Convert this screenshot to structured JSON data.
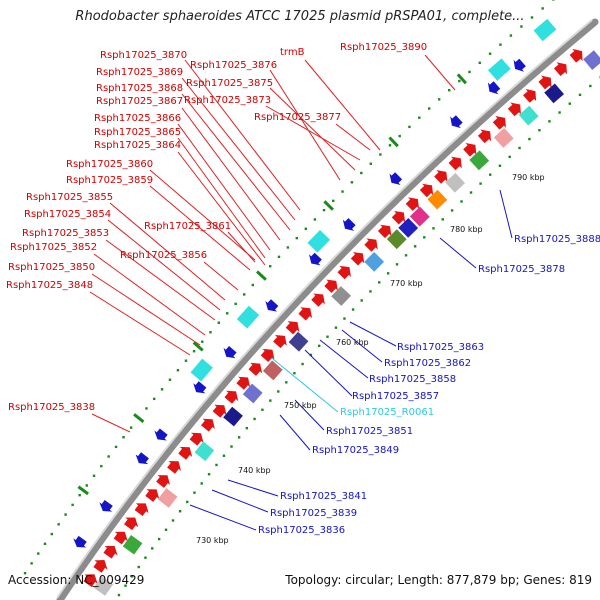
{
  "title": "Rhodobacter sphaeroides ATCC 17025 plasmid pRSPA01, complete...",
  "accession": "Accession: NC_009429",
  "topology": "Topology: circular; Length: 877,879 bp; Genes: 819",
  "colors": {
    "forward_label": "#d00000",
    "reverse_label": "#1414c8",
    "rna_label": "#30c8e0",
    "backbone": "#8c8c8c",
    "gc_skew": "#1a8a1a"
  },
  "ticks": [
    "730 kbp",
    "740 kbp",
    "750 kbp",
    "760 kbp",
    "770 kbp",
    "780 kbp",
    "790 kbp"
  ],
  "forward_labels": [
    "Rsph17025_3870",
    "Rsph17025_3876",
    "trmB",
    "Rsph17025_3890",
    "Rsph17025_3869",
    "Rsph17025_3875",
    "Rsph17025_3868",
    "Rsph17025_3873",
    "Rsph17025_3867",
    "Rsph17025_3877",
    "Rsph17025_3866",
    "Rsph17025_3865",
    "Rsph17025_3864",
    "Rsph17025_3860",
    "Rsph17025_3859",
    "Rsph17025_3855",
    "Rsph17025_3854",
    "Rsph17025_3861",
    "Rsph17025_3853",
    "Rsph17025_3852",
    "Rsph17025_3856",
    "Rsph17025_3850",
    "Rsph17025_3848",
    "Rsph17025_3838"
  ],
  "reverse_labels": [
    "Rsph17025_3888",
    "Rsph17025_3878",
    "Rsph17025_3863",
    "Rsph17025_3862",
    "Rsph17025_3858",
    "Rsph17025_3857",
    "Rsph17025_3851",
    "Rsph17025_3849",
    "Rsph17025_3841",
    "Rsph17025_3839",
    "Rsph17025_3836"
  ],
  "rna_labels": [
    "Rsph17025_R0061"
  ]
}
